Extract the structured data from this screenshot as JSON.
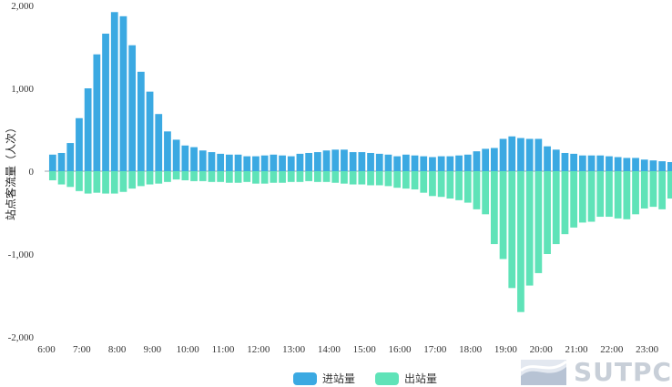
{
  "chart_data": {
    "type": "bar",
    "ylabel": "站点客流量（人次）",
    "ylim": [
      -2000,
      2000
    ],
    "yticks": [
      "2,000",
      "1,000",
      "0",
      "-1,000",
      "-2,000"
    ],
    "ytick_values": [
      2000,
      1000,
      0,
      -1000,
      -2000
    ],
    "xtick_labels": [
      "6:00",
      "7:00",
      "8:00",
      "9:00",
      "10:00",
      "11:00",
      "12:00",
      "13:00",
      "14:00",
      "15:00",
      "16:00",
      "17:00",
      "18:00",
      "19:00",
      "20:00",
      "21:00",
      "22:00",
      "23:00"
    ],
    "bins_per_hour": 4,
    "series": [
      {
        "name": "进站量",
        "color": "#3ba9e2",
        "values": [
          200,
          220,
          340,
          640,
          1000,
          1410,
          1660,
          1920,
          1870,
          1520,
          1200,
          960,
          690,
          480,
          380,
          310,
          290,
          250,
          230,
          210,
          200,
          200,
          180,
          180,
          190,
          200,
          190,
          180,
          210,
          220,
          230,
          250,
          260,
          260,
          230,
          230,
          220,
          210,
          200,
          180,
          200,
          190,
          180,
          170,
          180,
          180,
          190,
          200,
          240,
          270,
          280,
          390,
          420,
          400,
          390,
          390,
          300,
          260,
          220,
          210,
          190,
          190,
          190,
          180,
          170,
          160,
          160,
          140,
          130,
          120,
          110,
          100,
          80,
          40
        ]
      },
      {
        "name": "出站量",
        "color": "#5fe3b8",
        "values": [
          -110,
          -160,
          -190,
          -240,
          -270,
          -260,
          -270,
          -270,
          -250,
          -210,
          -180,
          -160,
          -150,
          -130,
          -100,
          -110,
          -120,
          -120,
          -130,
          -130,
          -140,
          -140,
          -130,
          -150,
          -150,
          -140,
          -140,
          -130,
          -130,
          -120,
          -130,
          -130,
          -140,
          -150,
          -160,
          -160,
          -170,
          -170,
          -180,
          -200,
          -210,
          -220,
          -260,
          -300,
          -310,
          -330,
          -350,
          -380,
          -460,
          -520,
          -880,
          -1060,
          -1410,
          -1700,
          -1380,
          -1230,
          -1000,
          -880,
          -760,
          -680,
          -620,
          -610,
          -550,
          -550,
          -570,
          -580,
          -520,
          -450,
          -430,
          -460,
          -330,
          -220,
          -110,
          -20
        ]
      }
    ]
  },
  "legend": {
    "inbound_label": "进站量",
    "outbound_label": "出站量"
  },
  "logo": {
    "text": "SUTPC"
  }
}
